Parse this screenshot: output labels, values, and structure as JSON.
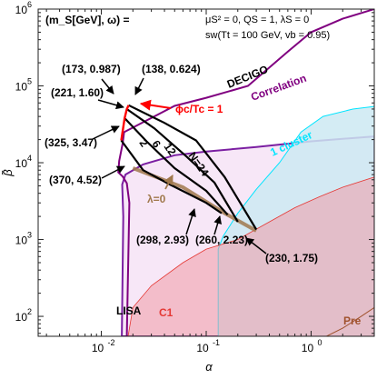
{
  "chart_data": {
    "type": "line",
    "xlabel": "α",
    "ylabel": "β̃",
    "xscale": "log",
    "yscale": "log",
    "xlim": [
      0.0025,
      4.0
    ],
    "ylim": [
      55,
      1000000
    ],
    "x_ticks": [
      {
        "value": 0.01,
        "label": "10",
        "exp": "-2"
      },
      {
        "value": 0.1,
        "label": "10",
        "exp": "-1"
      },
      {
        "value": 1,
        "label": "10",
        "exp": "0"
      }
    ],
    "y_ticks": [
      {
        "value": 100,
        "label": "10",
        "exp": "2"
      },
      {
        "value": 1000,
        "label": "10",
        "exp": "3"
      },
      {
        "value": 10000,
        "label": "10",
        "exp": "4"
      },
      {
        "value": 100000,
        "label": "10",
        "exp": "5"
      },
      {
        "value": 1000000,
        "label": "10",
        "exp": "6"
      }
    ],
    "header": "(m_S[GeV],  ω) =",
    "params": [
      "μS² = 0,  QS = 1,  λS = 0",
      "sw(Tt = 100 GeV,  vb = 0.95)"
    ],
    "colors": {
      "lisa": "#7b1fa2",
      "decigo": "#800080",
      "one_cluster": "#00e5ff",
      "c1": "#e53935",
      "pre": "#a0522d",
      "lambda0": "#a0784c",
      "phase": "#ff0000",
      "curves": "#000000"
    },
    "regions": [
      {
        "name": "LISA",
        "label": "LISA",
        "points": [
          [
            0.0157,
            55
          ],
          [
            0.0162,
            2000
          ],
          [
            0.0158,
            5200
          ],
          [
            0.017,
            7000
          ],
          [
            0.025,
            9500
          ],
          [
            0.05,
            12500
          ],
          [
            0.1,
            14000
          ],
          [
            0.3,
            16000
          ],
          [
            1,
            19000
          ],
          [
            4,
            22000
          ],
          [
            4,
            55
          ]
        ]
      },
      {
        "name": "DECIGO",
        "label": "DECIGO",
        "label2": "Correlation",
        "points": [
          [
            0.0175,
            55
          ],
          [
            0.0185,
            3000
          ],
          [
            0.0175,
            5400
          ],
          [
            0.016,
            6600
          ],
          [
            0.0145,
            7500
          ],
          [
            0.0148,
            10500
          ],
          [
            0.016,
            18000
          ],
          [
            0.0165,
            25000
          ],
          [
            0.05,
            55000
          ],
          [
            0.1,
            70000
          ],
          [
            0.25,
            100000
          ],
          [
            0.6,
            280000
          ],
          [
            1,
            500000
          ],
          [
            2,
            750000
          ],
          [
            4,
            1000000
          ],
          [
            4,
            55
          ]
        ]
      },
      {
        "name": "1 cluster",
        "label": "1 cluster",
        "points": [
          [
            0.13,
            55
          ],
          [
            0.13,
            750
          ],
          [
            0.145,
            1100
          ],
          [
            0.2,
            2200
          ],
          [
            0.3,
            4500
          ],
          [
            0.5,
            10000
          ],
          [
            0.8,
            25000
          ],
          [
            1.3,
            40000
          ],
          [
            2.5,
            50000
          ],
          [
            4,
            54000
          ],
          [
            4,
            55
          ]
        ]
      },
      {
        "name": "C1",
        "label": "C1",
        "points": [
          [
            0.018,
            55
          ],
          [
            0.02,
            130
          ],
          [
            0.03,
            250
          ],
          [
            0.06,
            500
          ],
          [
            0.1,
            750
          ],
          [
            0.2,
            1000
          ],
          [
            0.4,
            1700
          ],
          [
            0.7,
            2600
          ],
          [
            1.2,
            3600
          ],
          [
            2,
            4800
          ],
          [
            4,
            6500
          ],
          [
            4,
            55
          ]
        ]
      },
      {
        "name": "Pre",
        "label": "Pre",
        "points": [
          [
            1.4,
            55
          ],
          [
            2,
            70
          ],
          [
            3,
            100
          ],
          [
            4,
            130
          ],
          [
            4,
            55
          ]
        ]
      }
    ],
    "series": [
      {
        "name": "2",
        "points": [
          [
            0.0155,
            19500
          ],
          [
            0.025,
            8000
          ],
          [
            0.045,
            5200
          ],
          [
            0.1,
            3000
          ],
          [
            0.14,
            2200
          ]
        ]
      },
      {
        "name": "6",
        "points": [
          [
            0.0167,
            38000
          ],
          [
            0.027,
            19000
          ],
          [
            0.05,
            8500
          ],
          [
            0.1,
            4300
          ],
          [
            0.16,
            2100
          ]
        ]
      },
      {
        "name": "12",
        "points": [
          [
            0.0175,
            50000
          ],
          [
            0.032,
            28000
          ],
          [
            0.065,
            12000
          ],
          [
            0.12,
            5500
          ],
          [
            0.2,
            1700
          ]
        ]
      },
      {
        "name": "N=24",
        "points": [
          [
            0.0182,
            56000
          ],
          [
            0.04,
            33000
          ],
          [
            0.08,
            19500
          ],
          [
            0.15,
            6500
          ],
          [
            0.3,
            1350
          ]
        ]
      }
    ],
    "phase_line": {
      "label": "ϕc/Tc = 1",
      "points": [
        [
          0.0155,
          19500
        ],
        [
          0.0167,
          38000
        ],
        [
          0.0175,
          50000
        ],
        [
          0.0182,
          56000
        ]
      ]
    },
    "lambda0_line": {
      "label": "λ=0",
      "points": [
        [
          0.02,
          8500
        ],
        [
          0.06,
          4800
        ],
        [
          0.15,
          2200
        ],
        [
          0.3,
          1300
        ]
      ]
    },
    "line_labels": [
      "2",
      "6",
      "12",
      "N=24"
    ],
    "annotations": [
      {
        "text": "(173, 0.987)",
        "at": [
          0.0175,
          50000
        ]
      },
      {
        "text": "(138, 0.624)",
        "at": [
          0.0182,
          56000
        ]
      },
      {
        "text": "(221, 1.60)",
        "at": [
          0.0167,
          38000
        ]
      },
      {
        "text": "(325, 3.47)",
        "at": [
          0.0155,
          19500
        ]
      },
      {
        "text": "(370, 4.52)",
        "at": [
          0.0145,
          7500
        ]
      },
      {
        "text": "(298, 2.93)",
        "at": [
          0.085,
          3800
        ]
      },
      {
        "text": "(260, 2.23)",
        "at": [
          0.14,
          2200
        ]
      },
      {
        "text": "(230, 1.75)",
        "at": [
          0.3,
          1350
        ]
      }
    ]
  }
}
